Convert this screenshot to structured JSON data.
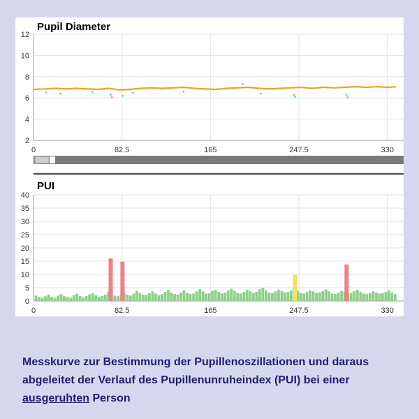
{
  "caption": {
    "line1": "Messkurve zur Bestimmung der Pupillenoszillationen und daraus",
    "line2": "abgeleitet der Verlauf des Pupillenunruheindex (PUI) bei einer",
    "line3_underlined": "ausgeruhten",
    "line3_rest": " Person"
  },
  "colors": {
    "diameter_line": "#f0a21e",
    "diameter_dots": "#5fd3c8",
    "pui_normal": "#8fd08a",
    "pui_high": "#f27f86",
    "pui_medium": "#f2e25c",
    "grid": "#e2e2e2"
  },
  "chart_data": [
    {
      "type": "line",
      "title": "Pupil Diameter",
      "xlabel": "",
      "ylabel": "",
      "xlim": [
        0,
        340
      ],
      "ylim": [
        2,
        12
      ],
      "x_ticks": [
        "0",
        "82.5",
        "165",
        "247.5",
        "330"
      ],
      "y_ticks": [
        "2",
        "4",
        "6",
        "8",
        "10",
        "12"
      ],
      "grid": true,
      "series": [
        {
          "x": [
            0,
            10,
            20,
            30,
            40,
            50,
            60,
            70,
            80,
            90,
            100,
            110,
            120,
            130,
            140,
            150,
            160,
            170,
            180,
            190,
            200,
            210,
            220,
            230,
            240,
            250,
            260,
            270,
            280,
            290,
            300,
            310,
            320,
            330,
            338
          ],
          "values": [
            6.8,
            6.85,
            6.9,
            6.85,
            6.9,
            6.85,
            6.8,
            6.9,
            6.75,
            6.8,
            6.9,
            6.95,
            6.9,
            6.95,
            7.0,
            6.9,
            6.85,
            6.8,
            6.9,
            6.95,
            7.0,
            6.9,
            6.85,
            6.9,
            6.95,
            7.0,
            6.9,
            7.0,
            6.95,
            7.0,
            7.05,
            7.0,
            7.05,
            7.0,
            7.05
          ]
        }
      ],
      "outliers": [
        {
          "x": 12,
          "y": 6.5
        },
        {
          "x": 25,
          "y": 6.4
        },
        {
          "x": 55,
          "y": 6.55
        },
        {
          "x": 72,
          "y": 6.3
        },
        {
          "x": 73,
          "y": 6.05
        },
        {
          "x": 83,
          "y": 6.2
        },
        {
          "x": 93,
          "y": 6.5
        },
        {
          "x": 140,
          "y": 6.6
        },
        {
          "x": 195,
          "y": 7.3
        },
        {
          "x": 212,
          "y": 6.4
        },
        {
          "x": 243,
          "y": 6.3
        },
        {
          "x": 244,
          "y": 6.1
        },
        {
          "x": 292,
          "y": 6.3
        },
        {
          "x": 293,
          "y": 6.05
        }
      ]
    },
    {
      "type": "bar",
      "title": "PUI",
      "xlabel": "",
      "ylabel": "",
      "xlim": [
        0,
        340
      ],
      "ylim": [
        0,
        40
      ],
      "x_ticks": [
        "0",
        "82.5",
        "165",
        "247.5",
        "330"
      ],
      "y_ticks": [
        "0",
        "5",
        "10",
        "15",
        "20",
        "25",
        "30",
        "35",
        "40"
      ],
      "grid": true,
      "baseline": [
        2,
        1.5,
        1.2,
        1.8,
        2.4,
        1.5,
        1.2,
        2.0,
        2.6,
        1.8,
        1.5,
        1.2,
        2.2,
        2.8,
        1.9,
        1.4,
        1.8,
        2.5,
        3.0,
        2.2,
        1.6,
        1.9,
        2.4,
        3.5,
        2.8,
        2.0,
        1.8,
        2.6,
        3.2,
        2.4,
        2.0,
        2.8,
        3.8,
        3.0,
        2.4,
        2.2,
        3.0,
        3.6,
        2.8,
        2.2,
        2.6,
        3.4,
        4.2,
        3.2,
        2.6,
        2.4,
        3.2,
        4.0,
        3.0,
        2.6,
        2.8,
        3.6,
        4.4,
        3.6,
        2.8,
        3.0,
        3.8,
        4.2,
        3.4,
        2.8,
        3.2,
        4.0,
        4.6,
        3.8,
        3.0,
        2.8,
        3.4,
        4.2,
        3.6,
        3.0,
        3.4,
        4.4,
        5.0,
        4.0,
        3.2,
        3.0,
        3.6,
        4.2,
        3.8,
        3.2,
        3.4,
        4.0,
        4.8,
        3.8,
        3.0,
        2.8,
        3.4,
        4.0,
        3.6,
        3.0,
        3.2,
        3.8,
        4.4,
        3.6,
        2.8,
        2.6,
        3.2,
        3.8,
        3.4,
        2.8,
        3.0,
        3.6,
        4.2,
        3.4,
        2.8,
        2.6,
        3.0,
        3.6,
        3.2,
        2.8,
        3.0,
        3.4,
        4.0,
        3.2,
        2.6
      ],
      "spikes": [
        {
          "x": 72,
          "height": 16,
          "color": "high"
        },
        {
          "x": 83,
          "height": 14.8,
          "color": "high"
        },
        {
          "x": 244,
          "height": 9.8,
          "color": "medium"
        },
        {
          "x": 292,
          "height": 13.8,
          "color": "high"
        }
      ]
    }
  ]
}
